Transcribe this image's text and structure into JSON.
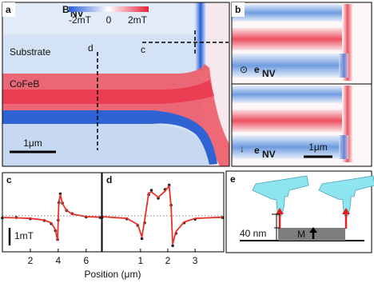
{
  "panels": {
    "a": {
      "label": "a",
      "colorbar": {
        "title": "B",
        "title_sub": "NV",
        "clim": [
          -2,
          2
        ],
        "ticks": [
          {
            "value": -2,
            "label": "-2mT"
          },
          0,
          {
            "value": 2,
            "label": "2mT"
          }
        ]
      },
      "substrate": "Substrate",
      "film": "CoFeB",
      "cut_d": "d",
      "cut_c": "c",
      "scale_bar": "1μm"
    },
    "b": {
      "label": "b",
      "symbol_top": "⊙",
      "symbol_bottom": "↓",
      "e": "e",
      "e_sub": "NV",
      "scale_bar": "1μm"
    },
    "e": {
      "label": "e",
      "height_label": "40 nm",
      "magnet_label": "M"
    }
  },
  "x_label": "Position (μm)",
  "chart_data": [
    {
      "type": "line",
      "label": "c",
      "xlim": [
        0,
        7.1
      ],
      "ylim": [
        -2.05,
        2.45
      ],
      "xticks": [
        2,
        4,
        6
      ],
      "scale_bar": {
        "value": 1,
        "label": "1mT"
      },
      "x": [
        0,
        1,
        2,
        3,
        3.5,
        3.8,
        3.95,
        4.0,
        4.05,
        4.15,
        4.3,
        4.6,
        5,
        6,
        7
      ],
      "series": [
        {
          "color": "#222222",
          "values": [
            -0.12,
            -0.1,
            -0.17,
            -0.27,
            -0.45,
            -0.85,
            -1.35,
            -0.25,
            0.75,
            1.25,
            0.72,
            0.3,
            0.12,
            -0.07,
            -0.1
          ]
        },
        {
          "color": "#e8302a",
          "values": [
            -0.1,
            -0.12,
            -0.15,
            -0.25,
            -0.4,
            -0.8,
            -1.4,
            -0.2,
            0.8,
            1.2,
            0.7,
            0.3,
            0.1,
            -0.05,
            -0.08
          ]
        }
      ]
    },
    {
      "type": "line",
      "label": "d",
      "xlim": [
        -0.4,
        4.05
      ],
      "ylim": [
        -2.05,
        2.45
      ],
      "xticks": [
        1,
        2,
        3
      ],
      "x": [
        -0.4,
        0.5,
        0.9,
        1.05,
        1.15,
        1.3,
        1.4,
        1.65,
        1.9,
        2.05,
        2.12,
        2.18,
        2.3,
        2.6,
        3,
        4
      ],
      "series": [
        {
          "color": "#222222",
          "values": [
            -0.08,
            -0.18,
            -0.55,
            -1.3,
            -0.4,
            1.2,
            1.45,
            1.0,
            1.5,
            1.75,
            0.6,
            -1.7,
            -1.0,
            -0.4,
            -0.2,
            -0.1
          ]
        },
        {
          "color": "#e8302a",
          "values": [
            -0.05,
            -0.15,
            -0.5,
            -1.2,
            -0.3,
            1.3,
            1.35,
            1.05,
            1.4,
            1.7,
            0.5,
            -1.6,
            -0.9,
            -0.35,
            -0.15,
            -0.08
          ]
        }
      ]
    }
  ]
}
